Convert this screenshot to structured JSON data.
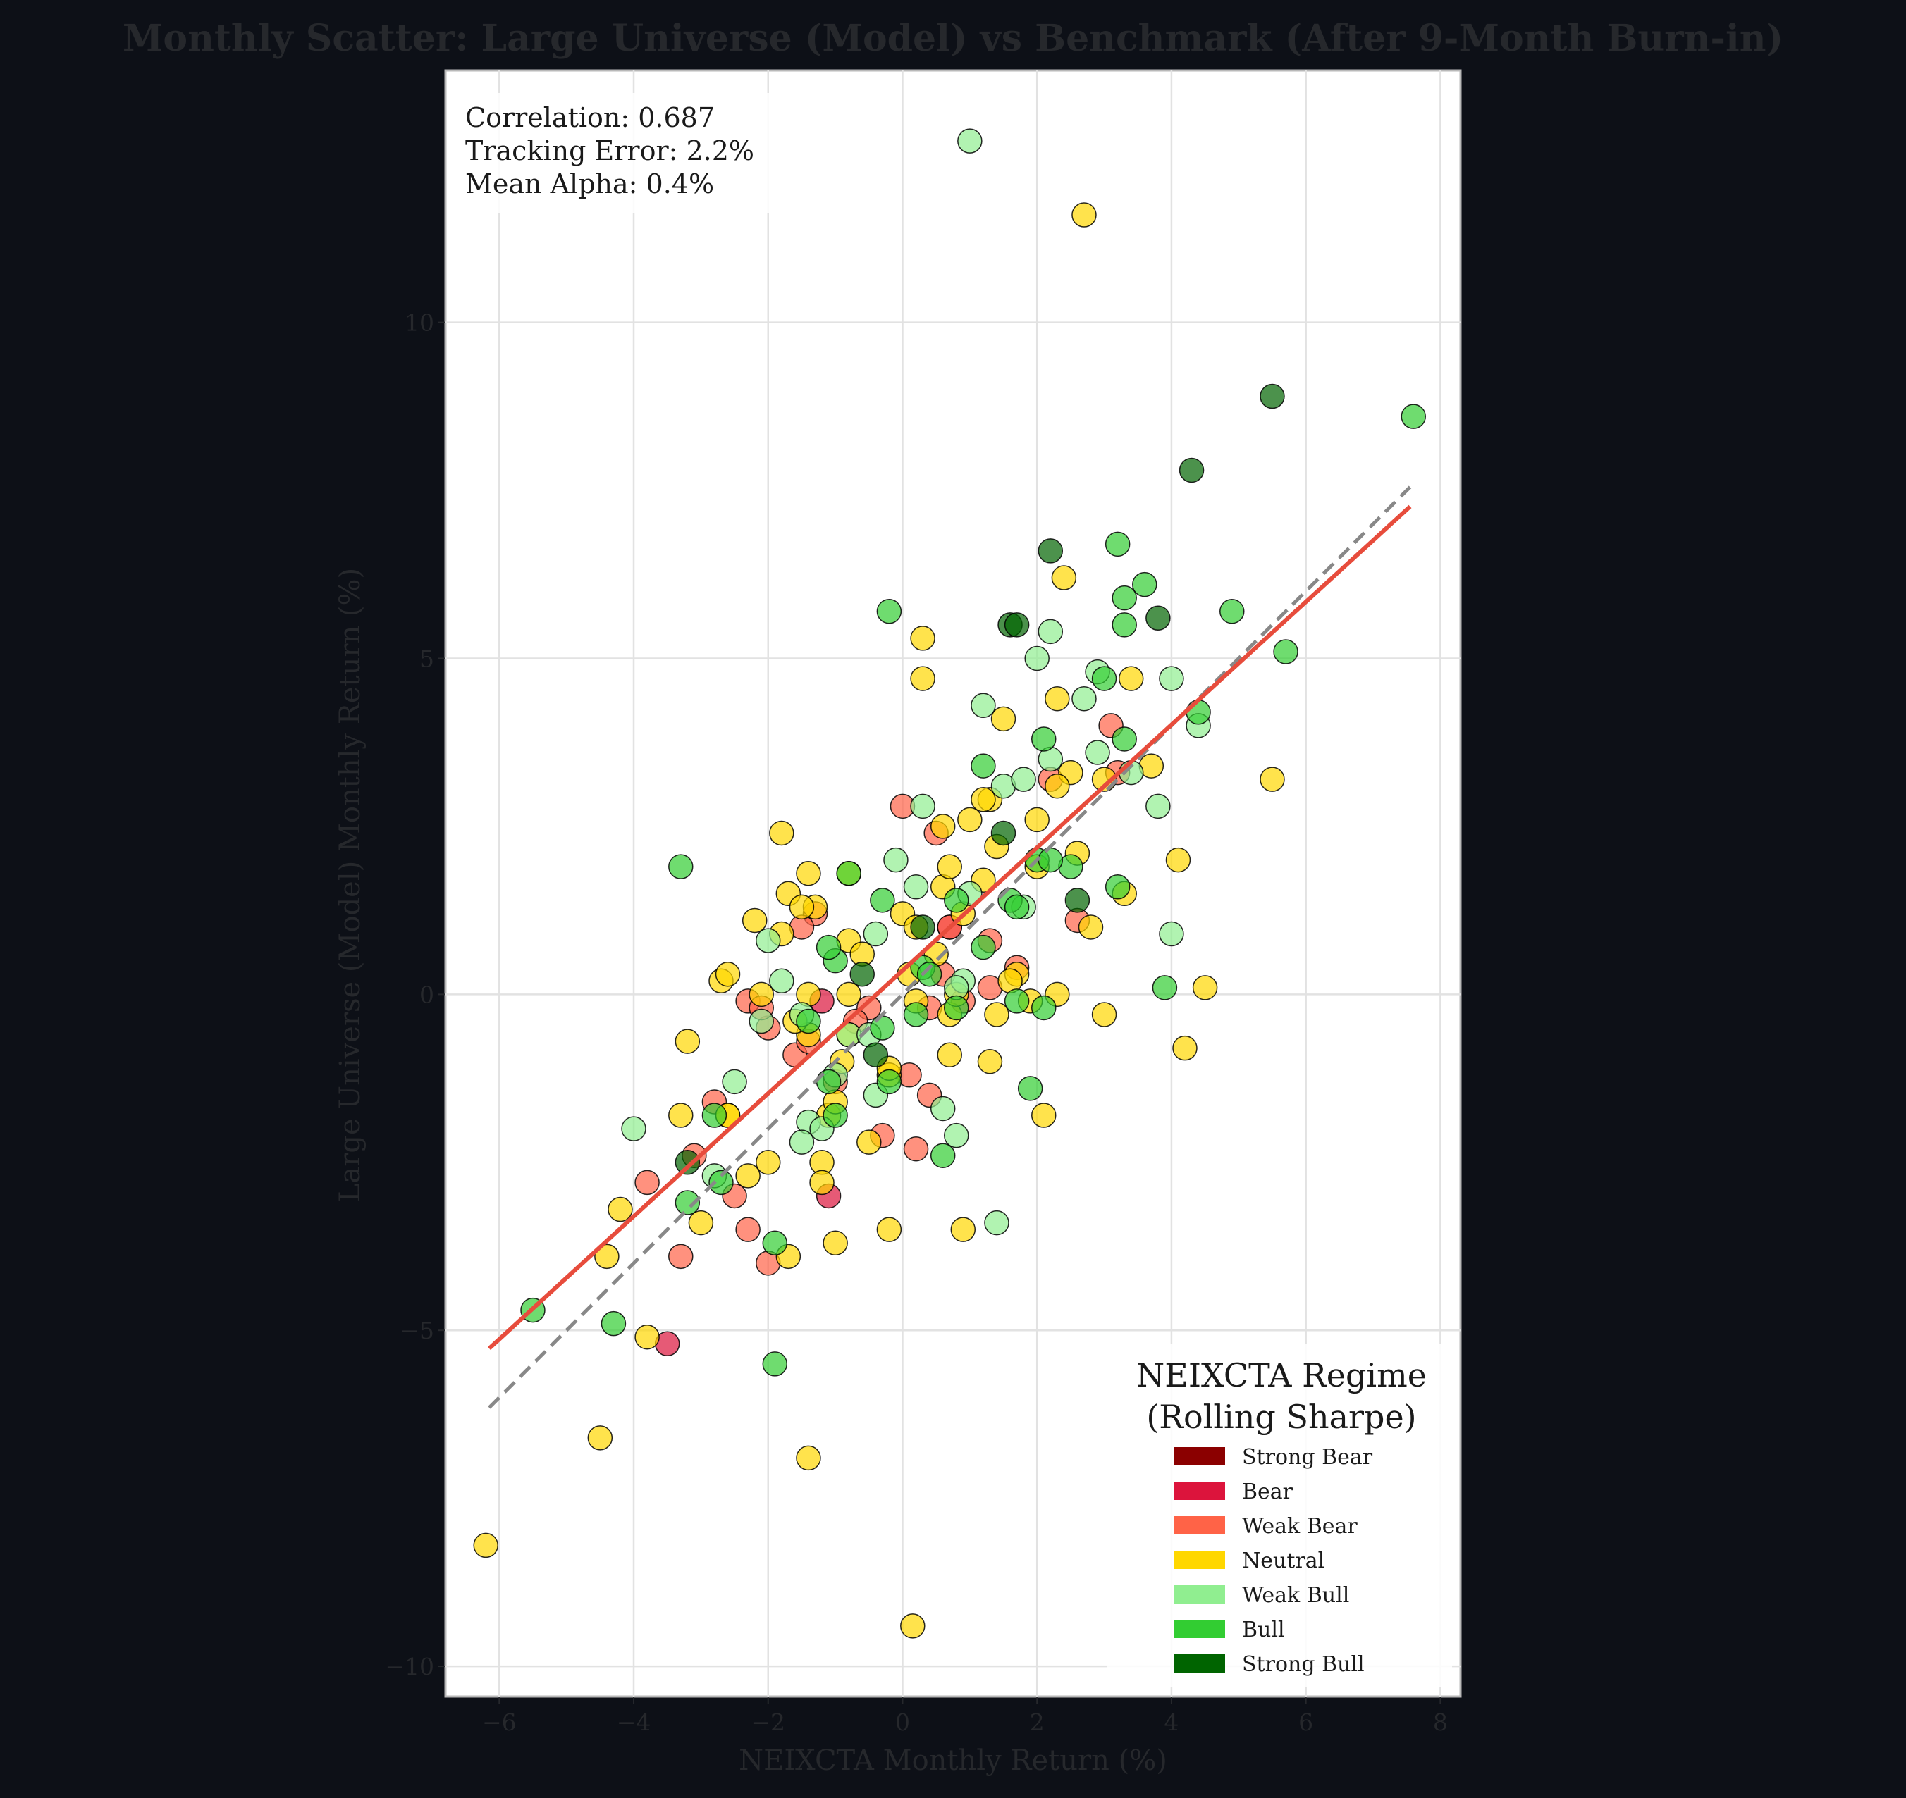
{
  "chart_data": {
    "type": "scatter",
    "title": "Monthly Scatter: Large Universe (Model) vs Benchmark (After 9-Month Burn-in)",
    "xlabel": "NEIXCTA Monthly Return (%)",
    "ylabel": "Large Universe (Model) Monthly Return (%)",
    "xlim": [
      -6.8,
      8.3
    ],
    "ylim": [
      -10.45,
      13.75
    ],
    "xticks": [
      -6,
      -4,
      -2,
      0,
      2,
      4,
      6,
      8
    ],
    "yticks": [
      -10,
      -5,
      0,
      5,
      10
    ],
    "xtick_labels": [
      "−6",
      "−4",
      "−2",
      "0",
      "2",
      "4",
      "6",
      "8"
    ],
    "ytick_labels": [
      "−10",
      "−5",
      "0",
      "5",
      "10"
    ],
    "grid": true,
    "stats": {
      "correlation": "Correlation: 0.687",
      "tracking_error": "Tracking Error: 2.2%",
      "mean_alpha": "Mean Alpha: 0.4%"
    },
    "regression_line": {
      "color": "#e74c3c",
      "x": [
        -6.15,
        7.55
      ],
      "y": [
        -5.27,
        7.26
      ]
    },
    "identity_line": {
      "color": "#888888",
      "x": [
        -6.15,
        7.55
      ],
      "y": [
        -6.15,
        7.55
      ]
    },
    "legend": {
      "title_lines": [
        "NEIXCTA Regime",
        "(Rolling Sharpe)"
      ],
      "position": "lower-right"
    },
    "series": [
      {
        "name": "Strong Bear",
        "color": "#8b0000",
        "points": []
      },
      {
        "name": "Bear",
        "color": "#dc143c",
        "points": [
          [
            -1.2,
            -0.1
          ],
          [
            -3.5,
            -5.2
          ],
          [
            0.7,
            1.0
          ],
          [
            -1.1,
            -3.0
          ]
        ]
      },
      {
        "name": "Weak Bear",
        "color": "#ff6347",
        "points": [
          [
            -2.3,
            -0.1
          ],
          [
            -2.0,
            -0.5
          ],
          [
            -3.1,
            -2.4
          ],
          [
            -2.5,
            -3.0
          ],
          [
            -1.6,
            -0.9
          ],
          [
            -1.3,
            1.2
          ],
          [
            -0.5,
            -0.2
          ],
          [
            0.2,
            -2.3
          ],
          [
            -0.3,
            -2.1
          ],
          [
            0.1,
            -1.2
          ],
          [
            0.4,
            -1.5
          ],
          [
            0.5,
            2.4
          ],
          [
            0.0,
            2.8
          ],
          [
            0.9,
            -0.1
          ],
          [
            1.3,
            0.1
          ],
          [
            1.7,
            0.4
          ],
          [
            2.2,
            3.2
          ],
          [
            2.6,
            1.1
          ],
          [
            3.1,
            4.0
          ],
          [
            3.2,
            3.3
          ],
          [
            -2.8,
            -1.6
          ],
          [
            -2.0,
            -4.0
          ],
          [
            -3.3,
            -3.9
          ],
          [
            -2.3,
            -3.5
          ],
          [
            -1.0,
            -1.3
          ],
          [
            0.6,
            0.3
          ],
          [
            -3.8,
            -2.8
          ],
          [
            -1.4,
            -0.7
          ],
          [
            1.3,
            0.8
          ],
          [
            -0.7,
            -0.4
          ],
          [
            0.4,
            -0.2
          ],
          [
            -1.5,
            1.0
          ],
          [
            -2.1,
            -0.2
          ],
          [
            0.7,
            1.0
          ]
        ]
      },
      {
        "name": "Neutral",
        "color": "#ffd700",
        "points": [
          [
            -6.2,
            -8.2
          ],
          [
            0.15,
            -9.4
          ],
          [
            -4.5,
            -6.6
          ],
          [
            -1.4,
            -6.9
          ],
          [
            -3.8,
            -5.1
          ],
          [
            -4.4,
            -3.9
          ],
          [
            -4.2,
            -3.2
          ],
          [
            -3.2,
            -0.7
          ],
          [
            -3.3,
            -1.8
          ],
          [
            -3.0,
            -3.4
          ],
          [
            -2.6,
            -1.8
          ],
          [
            -2.7,
            0.2
          ],
          [
            -2.2,
            1.1
          ],
          [
            -2.1,
            0.0
          ],
          [
            -1.8,
            2.4
          ],
          [
            -1.7,
            1.5
          ],
          [
            -1.4,
            1.8
          ],
          [
            -1.3,
            1.3
          ],
          [
            -1.2,
            -2.5
          ],
          [
            -1.2,
            -2.8
          ],
          [
            -1.1,
            -1.8
          ],
          [
            -1.0,
            -1.6
          ],
          [
            -1.0,
            -3.7
          ],
          [
            -0.8,
            0.8
          ],
          [
            -0.8,
            1.8
          ],
          [
            -0.5,
            -2.2
          ],
          [
            -0.2,
            -3.5
          ],
          [
            -0.2,
            -1.2
          ],
          [
            0.0,
            1.2
          ],
          [
            0.2,
            1.0
          ],
          [
            0.3,
            4.7
          ],
          [
            0.3,
            5.3
          ],
          [
            0.6,
            1.6
          ],
          [
            0.7,
            -0.9
          ],
          [
            0.7,
            -0.3
          ],
          [
            0.9,
            -3.5
          ],
          [
            1.0,
            2.6
          ],
          [
            1.2,
            1.7
          ],
          [
            1.3,
            2.9
          ],
          [
            1.3,
            -1.0
          ],
          [
            1.4,
            2.2
          ],
          [
            1.5,
            4.1
          ],
          [
            1.7,
            0.3
          ],
          [
            2.0,
            2.6
          ],
          [
            2.1,
            -1.8
          ],
          [
            2.3,
            4.4
          ],
          [
            2.4,
            6.2
          ],
          [
            2.5,
            3.3
          ],
          [
            2.6,
            2.1
          ],
          [
            2.8,
            1.0
          ],
          [
            3.0,
            3.2
          ],
          [
            3.0,
            -0.3
          ],
          [
            3.3,
            1.5
          ],
          [
            3.4,
            4.7
          ],
          [
            3.7,
            3.4
          ],
          [
            4.1,
            2.0
          ],
          [
            4.2,
            -0.8
          ],
          [
            4.5,
            0.1
          ],
          [
            5.5,
            3.2
          ],
          [
            2.7,
            11.6
          ],
          [
            -1.4,
            0.0
          ],
          [
            -1.8,
            0.9
          ],
          [
            -2.3,
            -2.7
          ],
          [
            -2.0,
            -2.5
          ],
          [
            -0.6,
            0.6
          ],
          [
            0.6,
            2.5
          ],
          [
            0.8,
            0.0
          ],
          [
            1.9,
            -0.1
          ],
          [
            -1.7,
            -3.9
          ],
          [
            2.3,
            0.0
          ],
          [
            -0.9,
            -1.0
          ],
          [
            -1.4,
            -0.6
          ],
          [
            1.4,
            -0.3
          ],
          [
            0.9,
            1.2
          ],
          [
            -1.5,
            1.3
          ],
          [
            1.2,
            2.9
          ],
          [
            0.7,
            1.9
          ],
          [
            2.3,
            3.1
          ],
          [
            0.2,
            -0.1
          ],
          [
            -2.6,
            0.3
          ],
          [
            -2.6,
            -1.8
          ],
          [
            -0.2,
            -1.1
          ],
          [
            0.1,
            0.3
          ],
          [
            -0.8,
            -0.6
          ],
          [
            1.6,
            0.2
          ],
          [
            2.0,
            1.9
          ],
          [
            0.5,
            0.6
          ],
          [
            -1.6,
            -0.4
          ],
          [
            -0.8,
            0.0
          ]
        ]
      },
      {
        "name": "Weak Bull",
        "color": "#90ee90",
        "points": [
          [
            1.0,
            12.7
          ],
          [
            -4.0,
            -2.0
          ],
          [
            -2.8,
            -2.7
          ],
          [
            -2.5,
            -1.3
          ],
          [
            -2.0,
            0.8
          ],
          [
            -1.4,
            -1.9
          ],
          [
            -1.2,
            -2.0
          ],
          [
            -1.0,
            -1.2
          ],
          [
            -1.5,
            -2.2
          ],
          [
            -0.8,
            -0.6
          ],
          [
            -0.4,
            -1.5
          ],
          [
            -0.1,
            2.0
          ],
          [
            0.2,
            1.6
          ],
          [
            0.3,
            2.8
          ],
          [
            0.6,
            -1.7
          ],
          [
            0.8,
            -2.1
          ],
          [
            0.9,
            0.2
          ],
          [
            1.2,
            4.3
          ],
          [
            1.5,
            3.1
          ],
          [
            1.8,
            3.2
          ],
          [
            1.8,
            1.3
          ],
          [
            2.0,
            5.0
          ],
          [
            2.2,
            5.4
          ],
          [
            2.2,
            3.5
          ],
          [
            2.7,
            4.4
          ],
          [
            2.9,
            4.8
          ],
          [
            2.9,
            3.6
          ],
          [
            3.4,
            3.3
          ],
          [
            3.8,
            2.8
          ],
          [
            4.0,
            4.7
          ],
          [
            4.0,
            0.9
          ],
          [
            4.4,
            4.0
          ],
          [
            -0.4,
            0.9
          ],
          [
            1.4,
            -3.4
          ],
          [
            -1.8,
            0.2
          ],
          [
            -1.5,
            -0.3
          ],
          [
            0.8,
            0.1
          ],
          [
            -2.1,
            -0.4
          ],
          [
            1.0,
            1.5
          ],
          [
            -0.5,
            -0.6
          ]
        ]
      },
      {
        "name": "Bull",
        "color": "#32cd32",
        "points": [
          [
            7.6,
            8.6
          ],
          [
            5.7,
            5.1
          ],
          [
            4.9,
            5.7
          ],
          [
            4.4,
            4.2
          ],
          [
            3.6,
            6.1
          ],
          [
            3.3,
            5.9
          ],
          [
            3.3,
            5.5
          ],
          [
            3.2,
            6.7
          ],
          [
            3.3,
            3.8
          ],
          [
            3.0,
            4.7
          ],
          [
            2.1,
            3.8
          ],
          [
            1.2,
            3.4
          ],
          [
            -0.2,
            5.7
          ],
          [
            -3.3,
            1.9
          ],
          [
            -5.5,
            -4.7
          ],
          [
            -4.3,
            -4.9
          ],
          [
            -3.2,
            -3.1
          ],
          [
            -2.7,
            -2.8
          ],
          [
            -2.8,
            -1.8
          ],
          [
            -1.9,
            -3.7
          ],
          [
            -1.9,
            -5.5
          ],
          [
            -1.1,
            -1.3
          ],
          [
            -1.0,
            0.5
          ],
          [
            -0.8,
            1.8
          ],
          [
            -0.3,
            1.4
          ],
          [
            -0.2,
            -1.3
          ],
          [
            0.2,
            -0.3
          ],
          [
            0.3,
            0.4
          ],
          [
            0.6,
            -2.4
          ],
          [
            0.8,
            -0.2
          ],
          [
            0.8,
            1.4
          ],
          [
            1.2,
            0.7
          ],
          [
            1.6,
            1.4
          ],
          [
            1.7,
            -0.1
          ],
          [
            1.9,
            -1.4
          ],
          [
            2.0,
            2.0
          ],
          [
            2.1,
            -0.2
          ],
          [
            2.5,
            1.9
          ],
          [
            3.9,
            0.1
          ],
          [
            -1.4,
            -0.4
          ],
          [
            0.4,
            0.3
          ],
          [
            1.7,
            1.3
          ],
          [
            -0.3,
            -0.5
          ],
          [
            -1.0,
            -1.8
          ],
          [
            3.2,
            1.6
          ],
          [
            -1.1,
            0.7
          ],
          [
            2.2,
            2.0
          ]
        ]
      },
      {
        "name": "Strong Bull",
        "color": "#006400",
        "points": [
          [
            5.5,
            8.9
          ],
          [
            4.3,
            7.8
          ],
          [
            3.8,
            5.6
          ],
          [
            2.2,
            6.6
          ],
          [
            1.6,
            5.5
          ],
          [
            1.7,
            5.5
          ],
          [
            1.5,
            2.4
          ],
          [
            2.6,
            1.4
          ],
          [
            -0.6,
            0.3
          ],
          [
            -0.4,
            -0.9
          ],
          [
            0.3,
            1.0
          ],
          [
            -3.2,
            -2.5
          ]
        ]
      }
    ]
  }
}
